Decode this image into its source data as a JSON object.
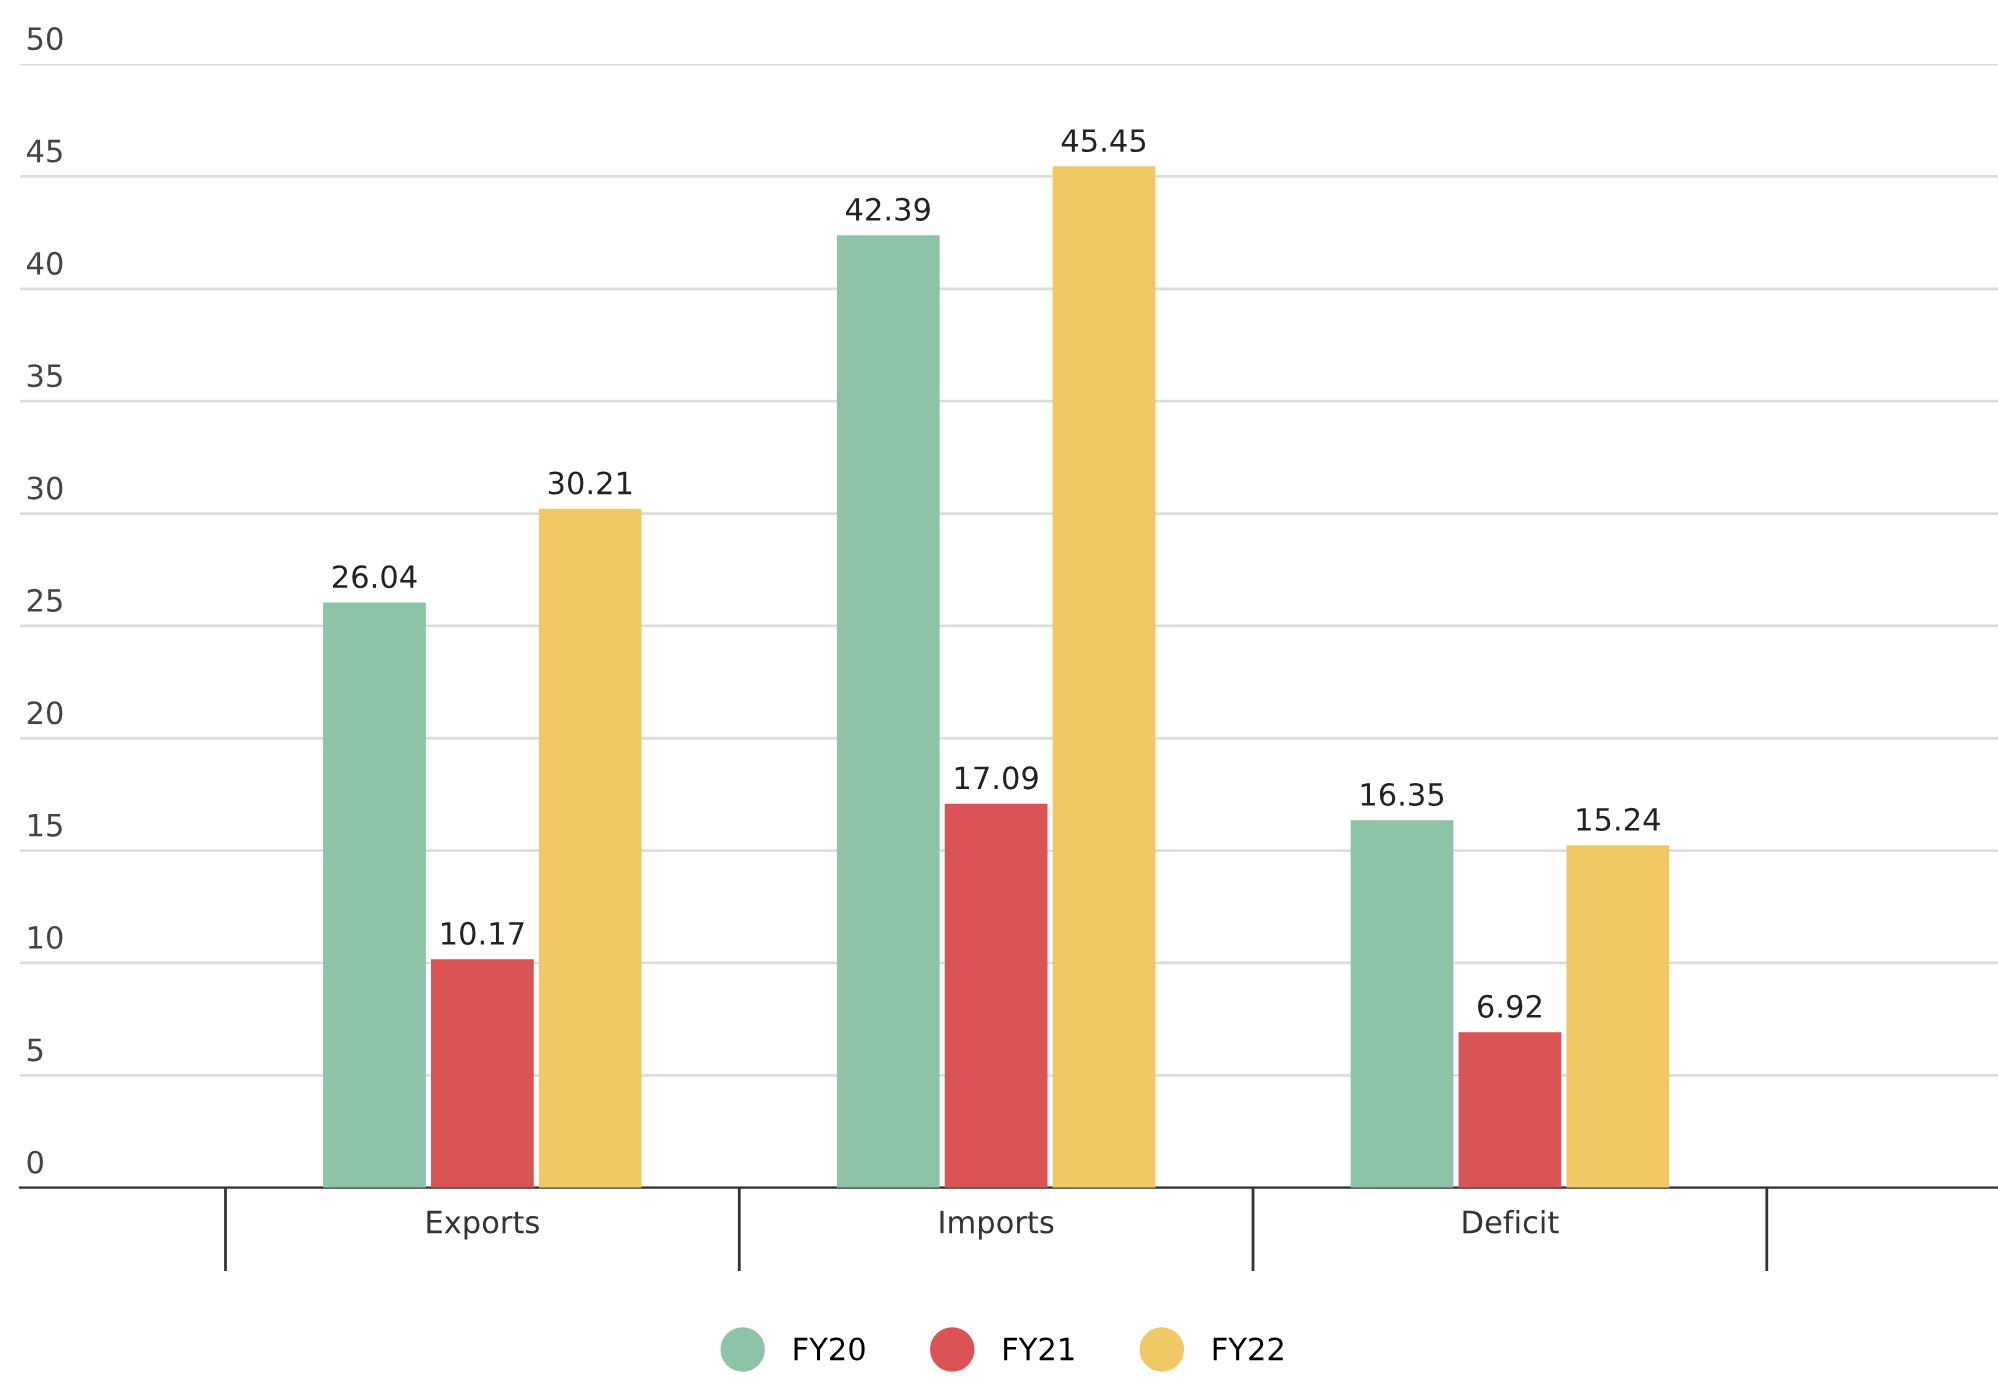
{
  "chart_data": {
    "type": "bar",
    "categories": [
      "Exports",
      "Imports",
      "Deficit"
    ],
    "series": [
      {
        "name": "FY20",
        "color": "#8dc3a7",
        "values": [
          26.04,
          42.39,
          16.35
        ]
      },
      {
        "name": "FY21",
        "color": "#dc5356",
        "values": [
          10.17,
          17.09,
          6.92
        ]
      },
      {
        "name": "FY22",
        "color": "#f0c965",
        "values": [
          30.21,
          45.45,
          15.24
        ]
      }
    ],
    "ylim": [
      0,
      50
    ],
    "yticks": [
      0,
      5,
      10,
      15,
      20,
      25,
      30,
      35,
      40,
      45,
      50
    ],
    "grid": "y",
    "legend": "bottom",
    "data_labels": true
  }
}
